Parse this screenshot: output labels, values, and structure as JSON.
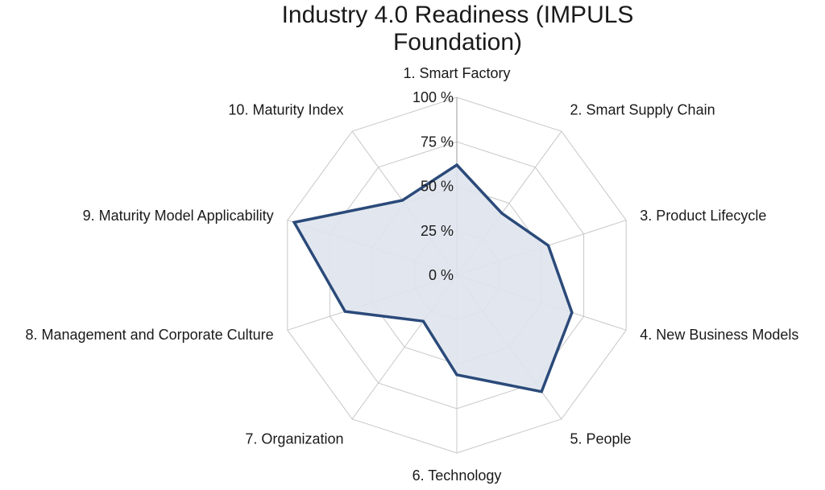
{
  "chart_data": {
    "type": "radar",
    "title_lines": [
      "Industry 4.0 Readiness (IMPULS",
      "Foundation)"
    ],
    "categories": [
      "1. Smart Factory",
      "2. Smart Supply Chain",
      "3. Product Lifecycle",
      "4. New Business Models",
      "5. People",
      "6. Technology",
      "7. Organization",
      "8. Management and Corporate Culture",
      "9. Maturity Model Applicability",
      "10. Maturity Index"
    ],
    "values": [
      62,
      43,
      54,
      68,
      81,
      56,
      32,
      66,
      96,
      52
    ],
    "value_unit": "%",
    "rlim": [
      0,
      100
    ],
    "ticks": [
      0,
      25,
      50,
      75,
      100
    ],
    "tick_labels": [
      "0 %",
      "25 %",
      "50 %",
      "75 %",
      "100 %"
    ],
    "grid": true,
    "legend": "none",
    "colors": {
      "series_line": "#2b4a7a",
      "series_fill": "#dfe4ed",
      "grid": "#c8c8c8",
      "axis": "#9a9a9a"
    }
  }
}
